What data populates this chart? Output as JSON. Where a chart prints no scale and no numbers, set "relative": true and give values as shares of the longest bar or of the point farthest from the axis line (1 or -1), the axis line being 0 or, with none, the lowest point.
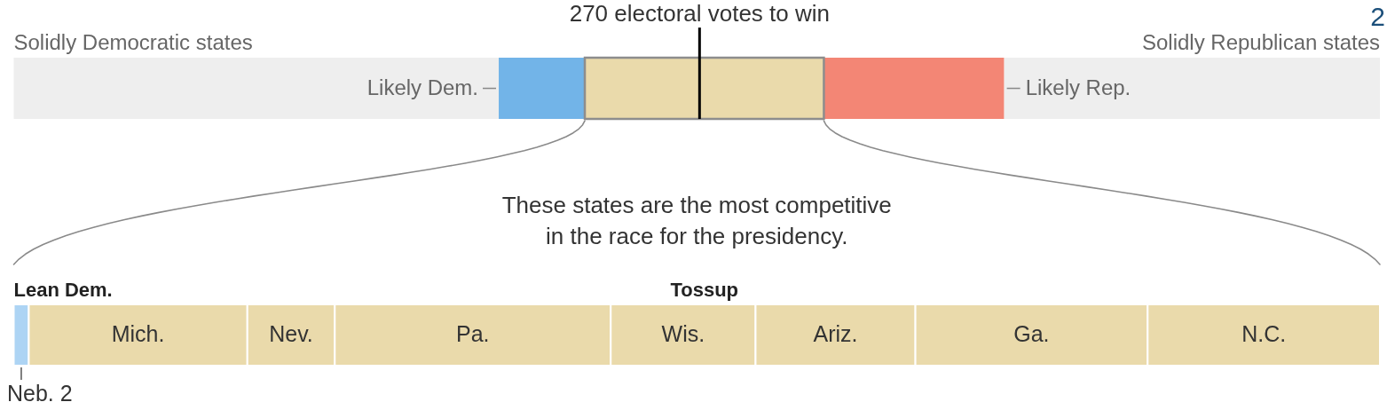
{
  "chart_data": [
    {
      "type": "bar",
      "orientation": "horizontal",
      "stacked": true,
      "relative": true,
      "legend": false,
      "categories": [
        null
      ],
      "series": [
        {
          "name": "Solidly Democratic states",
          "color": "#eeeeee",
          "values": [
            0.355
          ]
        },
        {
          "name": "Likely Dem.",
          "color": "#72b4e8",
          "values": [
            0.063
          ]
        },
        {
          "color": "#eadaab",
          "values": [
            0.175
          ]
        },
        {
          "name": "Likely Rep.",
          "color": "#f38675",
          "values": [
            0.132
          ]
        },
        {
          "name": "Solidly Republican states",
          "color": "#eeeeee",
          "values": [
            0.275
          ]
        }
      ],
      "ref_lines": [
        {
          "axis": "x",
          "value": 0.502,
          "label": "270 electoral votes to win",
          "color": "#000000"
        }
      ],
      "annotations": [
        "2"
      ]
    },
    {
      "type": "bar",
      "orientation": "horizontal",
      "stacked": true,
      "relative": true,
      "legend": false,
      "categories": [
        null
      ],
      "series": [
        {
          "name": "Neb. 2",
          "color": "#add4f4",
          "values": [
            0.011
          ]
        },
        {
          "name": "Mich.",
          "color": "#eadaab",
          "values": [
            0.16
          ]
        },
        {
          "name": "Nev.",
          "color": "#eadaab",
          "values": [
            0.064
          ]
        },
        {
          "name": "Pa.",
          "color": "#eadaab",
          "values": [
            0.202
          ]
        },
        {
          "name": "Wis.",
          "color": "#eadaab",
          "values": [
            0.106
          ]
        },
        {
          "name": "Ariz.",
          "color": "#eadaab",
          "values": [
            0.117
          ]
        },
        {
          "name": "Ga.",
          "color": "#eadaab",
          "values": [
            0.17
          ]
        },
        {
          "name": "N.C.",
          "color": "#eadaab",
          "values": [
            0.17
          ]
        }
      ],
      "annotations": [
        "These states are the most competitive\nin the race for the presidency.",
        "Lean Dem.",
        "Tossup"
      ]
    }
  ]
}
